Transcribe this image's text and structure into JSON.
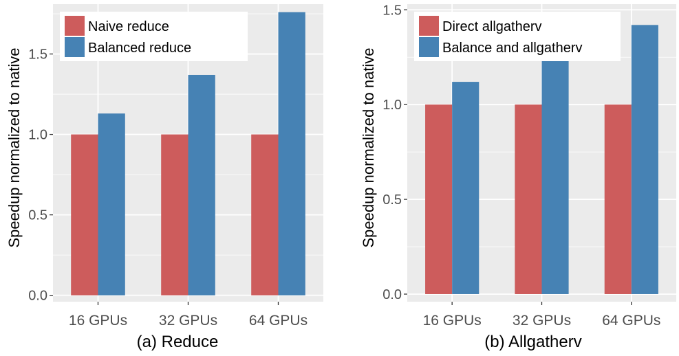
{
  "chart_data": [
    {
      "type": "bar",
      "title": "(a) Reduce",
      "xlabel": "",
      "ylabel": "Speedup normalized to native",
      "categories": [
        "16 GPUs",
        "32 GPUs",
        "64 GPUs"
      ],
      "series": [
        {
          "name": "Naive reduce",
          "color": "#cd5c5c",
          "values": [
            1.0,
            1.0,
            1.0
          ]
        },
        {
          "name": "Balanced reduce",
          "color": "#4682b4",
          "values": [
            1.13,
            1.37,
            1.76
          ]
        }
      ],
      "ylim": [
        -0.04,
        1.81
      ],
      "yticks": [
        0.0,
        0.5,
        1.0,
        1.5
      ],
      "ytick_labels": [
        "0.0",
        "0.5",
        "1.0",
        "1.5"
      ],
      "legend_position": "top-left",
      "grid": true,
      "panel_color": "#ebebeb"
    },
    {
      "type": "bar",
      "title": "(b) Allgatherv",
      "xlabel": "",
      "ylabel": "Speedup normalized to native",
      "categories": [
        "16 GPUs",
        "32 GPUs",
        "64 GPUs"
      ],
      "series": [
        {
          "name": "Direct allgatherv",
          "color": "#cd5c5c",
          "values": [
            1.0,
            1.0,
            1.0
          ]
        },
        {
          "name": "Balance and allgatherv",
          "color": "#4682b4",
          "values": [
            1.12,
            1.24,
            1.42
          ]
        }
      ],
      "ylim": [
        -0.04,
        1.53
      ],
      "yticks": [
        0.0,
        0.5,
        1.0,
        1.5
      ],
      "ytick_labels": [
        "0.0",
        "0.5",
        "1.0",
        "1.5"
      ],
      "legend_position": "top-left",
      "grid": true,
      "panel_color": "#ebebeb"
    }
  ]
}
